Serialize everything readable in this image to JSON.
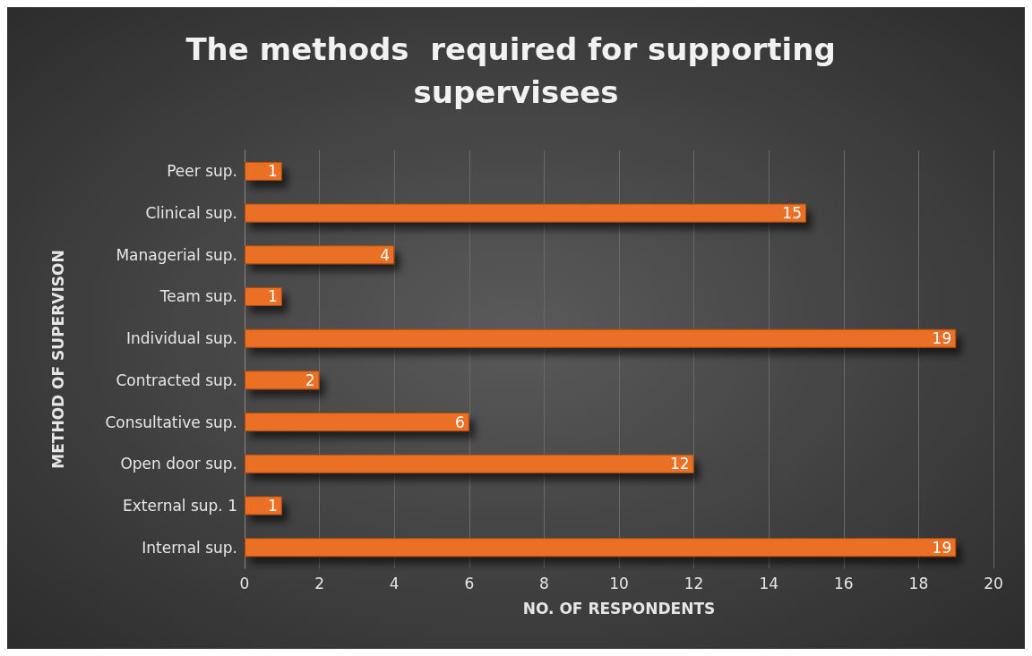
{
  "chart_data": {
    "type": "bar",
    "orientation": "horizontal",
    "title": "The methods  required for supporting supervisees",
    "xlabel": "NO. OF RESPONDENTS",
    "ylabel": "METHOD OF SUPERVISON",
    "categories": [
      "Peer sup.",
      "Clinical sup.",
      "Managerial sup.",
      "Team sup.",
      "Individual sup.",
      "Contracted sup.",
      "Consultative sup.",
      "Open door sup.",
      "External sup. 1",
      "Internal sup."
    ],
    "values": [
      1,
      15,
      4,
      1,
      19,
      2,
      6,
      12,
      1,
      19
    ],
    "color": "#ea7025",
    "xlim": [
      0,
      20
    ],
    "xticks": [
      0,
      2,
      4,
      6,
      8,
      10,
      12,
      14,
      16,
      18,
      20
    ],
    "grid": "x",
    "data_labels": true
  }
}
